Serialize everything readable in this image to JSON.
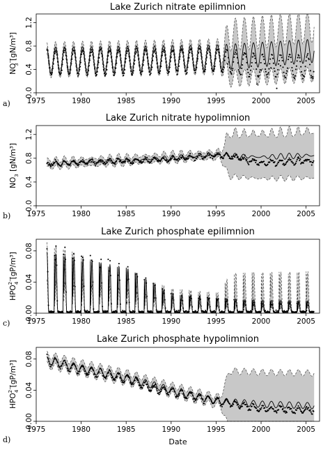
{
  "colors": {
    "band": "#c8c8c8",
    "axis": "#000000",
    "points": "#000000",
    "background": "#ffffff"
  },
  "xlabel": "Date",
  "chart_data": [
    {
      "type": "line",
      "title": "Lake Zurich nitrate epilimnion",
      "panel_letter": "a)",
      "ylabel": {
        "main": "NO",
        "sub": "3",
        "sup": "−",
        "unit": " [gN/m³]"
      },
      "xlim": [
        1975,
        2006.5
      ],
      "ylim": [
        0,
        1.35
      ],
      "xticks": [
        "1975",
        "1980",
        "1985",
        "1990",
        "1995",
        "2000",
        "2005"
      ],
      "yticks": [
        "0.0",
        "0.4",
        "0.8",
        "1.2"
      ],
      "series": [
        {
          "role": "observations",
          "style": "points",
          "summary": {
            "start": 1976.2,
            "end": 2005.9,
            "period_years": 1,
            "level": [
              [
                1976,
                0.52
              ],
              [
                1985,
                0.52
              ],
              [
                1995,
                0.56
              ],
              [
                2000,
                0.46
              ],
              [
                2006,
                0.45
              ]
            ],
            "amplitude": [
              [
                1976,
                0.22
              ],
              [
                1995,
                0.2
              ],
              [
                2006,
                0.2
              ]
            ]
          }
        },
        {
          "role": "model",
          "style": "solid",
          "summary": {
            "start": 1976.2,
            "end": 2005.9,
            "level": [
              [
                1976,
                0.55
              ],
              [
                1995,
                0.6
              ],
              [
                2006,
                0.72
              ]
            ],
            "amplitude": [
              [
                1976,
                0.23
              ],
              [
                1995,
                0.22
              ],
              [
                2006,
                0.2
              ]
            ]
          }
        },
        {
          "role": "uncertainty_band",
          "style": "band_with_dashed_edges",
          "summary": {
            "halfwidth": [
              [
                1976,
                0.08
              ],
              [
                1995.5,
                0.09
              ],
              [
                1996.5,
                0.38
              ],
              [
                2006,
                0.42
              ]
            ]
          }
        }
      ]
    },
    {
      "type": "line",
      "title": "Lake Zurich nitrate hypolimnion",
      "panel_letter": "b)",
      "ylabel": {
        "main": "NO",
        "sub": "3",
        "sup": "",
        "unit": " [gN/m³]"
      },
      "xlim": [
        1975,
        2006.5
      ],
      "ylim": [
        0,
        1.35
      ],
      "xticks": [
        "1975",
        "1980",
        "1985",
        "1990",
        "1995",
        "2000",
        "2005"
      ],
      "yticks": [
        "0.0",
        "0.4",
        "0.8",
        "1.2"
      ],
      "series": [
        {
          "role": "observations",
          "style": "points",
          "summary": {
            "start": 1976.2,
            "end": 2005.9,
            "level": [
              [
                1976,
                0.7
              ],
              [
                1980,
                0.73
              ],
              [
                1985,
                0.75
              ],
              [
                1990,
                0.78
              ],
              [
                1995,
                0.85
              ],
              [
                1997,
                0.82
              ],
              [
                2000,
                0.72
              ],
              [
                2006,
                0.76
              ]
            ],
            "amplitude": [
              [
                1976,
                0.03
              ],
              [
                2006,
                0.04
              ]
            ]
          }
        },
        {
          "role": "model",
          "style": "solid",
          "summary": {
            "start": 1976.2,
            "end": 2005.9,
            "level": [
              [
                1976,
                0.7
              ],
              [
                1985,
                0.76
              ],
              [
                1995,
                0.85
              ],
              [
                2000,
                0.82
              ],
              [
                2006,
                0.85
              ]
            ],
            "amplitude": [
              [
                1976,
                0.05
              ],
              [
                2006,
                0.08
              ]
            ]
          }
        },
        {
          "role": "uncertainty_band",
          "style": "band_with_dashed_edges",
          "summary": {
            "halfwidth": [
              [
                1976,
                0.06
              ],
              [
                1995.5,
                0.06
              ],
              [
                1996.5,
                0.35
              ],
              [
                2006,
                0.38
              ]
            ]
          }
        }
      ]
    },
    {
      "type": "line",
      "title": "Lake Zurich phosphate epilimnion",
      "panel_letter": "c)",
      "ylabel": {
        "main": "HPO",
        "sub": "4",
        "sup": "2−",
        "unit": " [gP/m³]"
      },
      "xlim": [
        1975,
        2006.5
      ],
      "ylim": [
        0,
        0.095
      ],
      "xticks": [
        "1975",
        "1980",
        "1985",
        "1990",
        "1995",
        "2000",
        "2005"
      ],
      "yticks": [
        "0.00",
        "0.04",
        "0.08"
      ],
      "series": [
        {
          "role": "observations",
          "style": "points",
          "summary": {
            "start": 1976.2,
            "end": 2005.9,
            "period_years": 1,
            "baseline": 0.002,
            "peak": [
              [
                1976,
                0.08
              ],
              [
                1977,
                0.085
              ],
              [
                1985,
                0.06
              ],
              [
                1990,
                0.022
              ],
              [
                1995,
                0.018
              ],
              [
                2000,
                0.01
              ],
              [
                2006,
                0.012
              ]
            ]
          }
        },
        {
          "role": "model",
          "style": "solid",
          "summary": {
            "peak": [
              [
                1976,
                0.078
              ],
              [
                1985,
                0.058
              ],
              [
                1990,
                0.024
              ],
              [
                1995,
                0.018
              ],
              [
                2000,
                0.016
              ],
              [
                2006,
                0.015
              ]
            ]
          }
        },
        {
          "role": "uncertainty_band",
          "style": "band_with_dashed_edges",
          "summary": {
            "upper_peak": [
              [
                1976,
                0.09
              ],
              [
                1990,
                0.03
              ],
              [
                1995.5,
                0.024
              ],
              [
                1996.5,
                0.05
              ],
              [
                2006,
                0.052
              ]
            ]
          }
        }
      ]
    },
    {
      "type": "line",
      "title": "Lake Zurich phosphate hypolimnion",
      "panel_letter": "d)",
      "ylabel": {
        "main": "HPO",
        "sub": "4",
        "sup": "2−",
        "unit": " [gP/m³]"
      },
      "xlim": [
        1975,
        2006.5
      ],
      "ylim": [
        0,
        0.095
      ],
      "xticks": [
        "1975",
        "1980",
        "1985",
        "1990",
        "1995",
        "2000",
        "2005"
      ],
      "yticks": [
        "0.00",
        "0.04",
        "0.08"
      ],
      "series": [
        {
          "role": "observations",
          "style": "points",
          "summary": {
            "start": 1976.2,
            "end": 2005.9,
            "level": [
              [
                1976,
                0.079
              ],
              [
                1980,
                0.066
              ],
              [
                1985,
                0.055
              ],
              [
                1988,
                0.042
              ],
              [
                1990,
                0.038
              ],
              [
                1995,
                0.026
              ],
              [
                2000,
                0.016
              ],
              [
                2006,
                0.014
              ]
            ],
            "amplitude": [
              [
                1976,
                0.006
              ],
              [
                2006,
                0.003
              ]
            ]
          }
        },
        {
          "role": "model",
          "style": "solid",
          "summary": {
            "level": [
              [
                1976,
                0.079
              ],
              [
                1980,
                0.068
              ],
              [
                1985,
                0.056
              ],
              [
                1990,
                0.04
              ],
              [
                1995,
                0.026
              ],
              [
                2000,
                0.022
              ],
              [
                2006,
                0.02
              ]
            ],
            "amplitude": [
              [
                1976,
                0.005
              ],
              [
                2006,
                0.004
              ]
            ]
          }
        },
        {
          "role": "uncertainty_band",
          "style": "band_with_dashed_edges",
          "summary": {
            "halfwidth": [
              [
                1976,
                0.007
              ],
              [
                1995.5,
                0.006
              ],
              [
                1996.5,
                0.04
              ],
              [
                2006,
                0.042
              ]
            ]
          }
        }
      ]
    }
  ]
}
